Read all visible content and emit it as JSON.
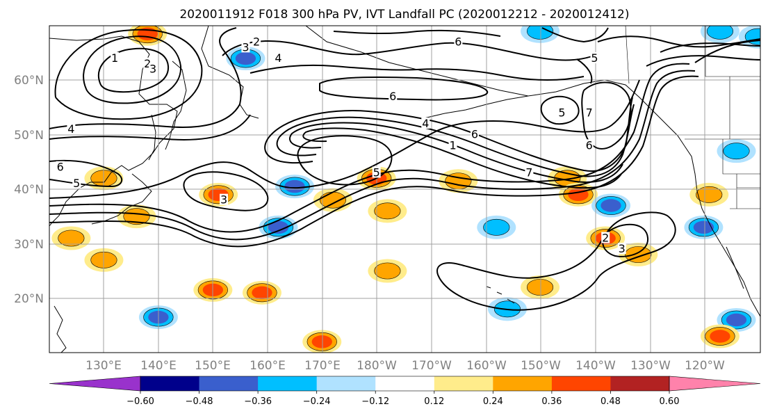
{
  "title": "2020011912 F018 300 hPa PV, IVT Landfall PC (2020012212 - 2020012412)",
  "lat_labels": [
    "60°N",
    "50°N",
    "40°N",
    "30°N",
    "20°N"
  ],
  "lon_labels": [
    "130°E",
    "140°E",
    "150°E",
    "160°E",
    "170°E",
    "180°W",
    "170°W",
    "160°W",
    "150°W",
    "140°W",
    "130°W",
    "120°W"
  ],
  "colorbar": {
    "colors": [
      "#9932cc",
      "#00008b",
      "#3a5fcd",
      "#00bfff",
      "#b0e2ff",
      "#ffffff",
      "#ffec8b",
      "#ffa500",
      "#ff4500",
      "#b22222",
      "#ff82ab"
    ],
    "tick_labels": [
      "−0.60",
      "−0.48",
      "−0.36",
      "−0.24",
      "−0.12",
      "0.12",
      "0.24",
      "0.36",
      "0.48",
      "0.60"
    ]
  },
  "contour_labels": [
    "1",
    "2",
    "3",
    "4",
    "5",
    "6",
    "7"
  ],
  "contour_label_marks": [
    {
      "text": "1",
      "lon": 132,
      "lat": 64
    },
    {
      "text": "2",
      "lon": 138,
      "lat": 63
    },
    {
      "text": "3",
      "lon": 139,
      "lat": 62
    },
    {
      "text": "3",
      "lon": 156,
      "lat": 66
    },
    {
      "text": "2",
      "lon": 158,
      "lat": 67
    },
    {
      "text": "4",
      "lon": 162,
      "lat": 64
    },
    {
      "text": "6",
      "lon": 195,
      "lat": 67
    },
    {
      "text": "6",
      "lon": 183,
      "lat": 57
    },
    {
      "text": "4",
      "lon": 124,
      "lat": 51
    },
    {
      "text": "6",
      "lon": 122,
      "lat": 44
    },
    {
      "text": "5",
      "lon": 125,
      "lat": 41
    },
    {
      "text": "3",
      "lon": 152,
      "lat": 38
    },
    {
      "text": "5",
      "lon": 180,
      "lat": 43
    },
    {
      "text": "4",
      "lon": 189,
      "lat": 52
    },
    {
      "text": "1",
      "lon": 194,
      "lat": 48
    },
    {
      "text": "6",
      "lon": 198,
      "lat": 50
    },
    {
      "text": "7",
      "lon": 208,
      "lat": 43
    },
    {
      "text": "5",
      "lon": 214,
      "lat": 54
    },
    {
      "text": "7",
      "lon": 219,
      "lat": 54
    },
    {
      "text": "6",
      "lon": 219,
      "lat": 48
    },
    {
      "text": "5",
      "lon": 220,
      "lat": 64
    },
    {
      "text": "2",
      "lon": 222,
      "lat": 31
    },
    {
      "text": "3",
      "lon": 225,
      "lat": 29
    }
  ],
  "pv_anomalies": [
    {
      "lon": 138,
      "lat": 68.5,
      "value": 0.42
    },
    {
      "lon": 156,
      "lat": 64,
      "value": -0.42
    },
    {
      "lon": 165,
      "lat": 40.5,
      "value": -0.45
    },
    {
      "lon": 151,
      "lat": 39,
      "value": 0.45
    },
    {
      "lon": 162,
      "lat": 33,
      "value": -0.4
    },
    {
      "lon": 136,
      "lat": 35,
      "value": 0.3
    },
    {
      "lon": 130,
      "lat": 42,
      "value": 0.3
    },
    {
      "lon": 124,
      "lat": 31,
      "value": 0.3
    },
    {
      "lon": 130,
      "lat": 27,
      "value": 0.3
    },
    {
      "lon": 180,
      "lat": 42,
      "value": 0.4
    },
    {
      "lon": 182,
      "lat": 36,
      "value": 0.3
    },
    {
      "lon": 172,
      "lat": 38,
      "value": 0.28
    },
    {
      "lon": 195,
      "lat": 41.5,
      "value": 0.28
    },
    {
      "lon": 159,
      "lat": 21,
      "value": 0.42
    },
    {
      "lon": 150,
      "lat": 21.5,
      "value": 0.4
    },
    {
      "lon": 140,
      "lat": 16.5,
      "value": -0.42
    },
    {
      "lon": 170,
      "lat": 12,
      "value": 0.42
    },
    {
      "lon": 182,
      "lat": 25,
      "value": 0.28
    },
    {
      "lon": 202,
      "lat": 33,
      "value": -0.3
    },
    {
      "lon": 210,
      "lat": 22,
      "value": 0.3
    },
    {
      "lon": 215,
      "lat": 42,
      "value": 0.35
    },
    {
      "lon": 217,
      "lat": 39,
      "value": 0.38
    },
    {
      "lon": 223,
      "lat": 37,
      "value": -0.45
    },
    {
      "lon": 222,
      "lat": 31,
      "value": 0.45
    },
    {
      "lon": 228,
      "lat": 28,
      "value": 0.35
    },
    {
      "lon": 240,
      "lat": 33,
      "value": -0.45
    },
    {
      "lon": 241,
      "lat": 39,
      "value": 0.28
    },
    {
      "lon": 246,
      "lat": 16,
      "value": -0.45
    },
    {
      "lon": 243,
      "lat": 13,
      "value": 0.45
    },
    {
      "lon": 243,
      "lat": 69,
      "value": -0.35
    },
    {
      "lon": 250,
      "lat": 68,
      "value": -0.3
    },
    {
      "lon": 204,
      "lat": 18,
      "value": -0.3
    },
    {
      "lon": 210,
      "lat": 69,
      "value": -0.3
    },
    {
      "lon": 246,
      "lat": 47,
      "value": -0.3
    }
  ]
}
